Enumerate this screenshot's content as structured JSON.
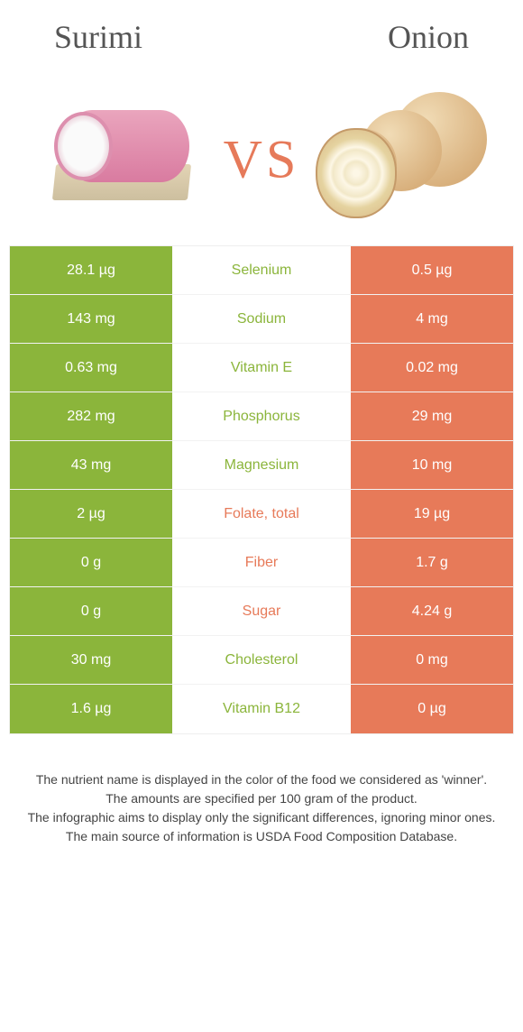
{
  "header": {
    "left_title": "Surimi",
    "right_title": "Onion",
    "vs": "VS"
  },
  "colors": {
    "left_bg": "#8bb53b",
    "right_bg": "#e77a59",
    "mid_left_text": "#8bb53b",
    "mid_right_text": "#e77a59",
    "white": "#ffffff"
  },
  "typography": {
    "title_fontsize": 36,
    "vs_fontsize": 60,
    "cell_fontsize": 16,
    "footer_fontsize": 14
  },
  "rows": [
    {
      "left": "28.1 µg",
      "mid": "Selenium",
      "right": "0.5 µg",
      "winner": "left"
    },
    {
      "left": "143 mg",
      "mid": "Sodium",
      "right": "4 mg",
      "winner": "left"
    },
    {
      "left": "0.63 mg",
      "mid": "Vitamin E",
      "right": "0.02 mg",
      "winner": "left"
    },
    {
      "left": "282 mg",
      "mid": "Phosphorus",
      "right": "29 mg",
      "winner": "left"
    },
    {
      "left": "43 mg",
      "mid": "Magnesium",
      "right": "10 mg",
      "winner": "left"
    },
    {
      "left": "2 µg",
      "mid": "Folate, total",
      "right": "19 µg",
      "winner": "right"
    },
    {
      "left": "0 g",
      "mid": "Fiber",
      "right": "1.7 g",
      "winner": "right"
    },
    {
      "left": "0 g",
      "mid": "Sugar",
      "right": "4.24 g",
      "winner": "right"
    },
    {
      "left": "30 mg",
      "mid": "Cholesterol",
      "right": "0 mg",
      "winner": "left"
    },
    {
      "left": "1.6 µg",
      "mid": "Vitamin B12",
      "right": "0 µg",
      "winner": "left"
    }
  ],
  "footer": {
    "line1": "The nutrient name is displayed in the color of the food we considered as 'winner'.",
    "line2": "The amounts are specified per 100 gram of the product.",
    "line3": "The infographic aims to display only the significant differences, ignoring minor ones.",
    "line4": "The main source of information is USDA Food Composition Database."
  }
}
